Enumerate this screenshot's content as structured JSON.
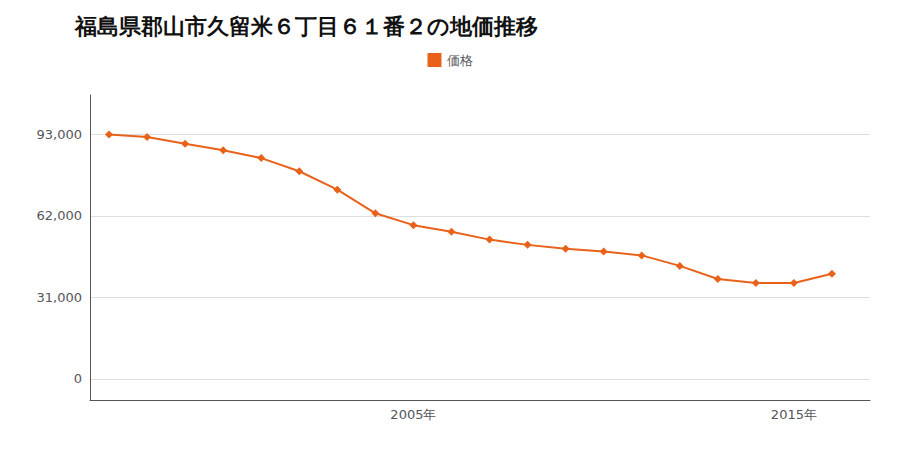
{
  "chart_data": {
    "type": "line",
    "title": "福島県郡山市久留米６丁目６１番２の地価推移",
    "x": [
      1997,
      1998,
      1999,
      2000,
      2001,
      2002,
      2003,
      2004,
      2005,
      2006,
      2007,
      2008,
      2009,
      2010,
      2011,
      2012,
      2013,
      2014,
      2015,
      2016
    ],
    "series": [
      {
        "name": "価格",
        "color": "#e8621a",
        "marker": "diamond",
        "values": [
          93000,
          92000,
          89500,
          87000,
          84000,
          79000,
          72000,
          63000,
          58500,
          56000,
          53000,
          51000,
          49500,
          48500,
          47000,
          43000,
          38000,
          36500,
          36500,
          40000
        ]
      }
    ],
    "xlim": [
      1996.5,
      2017
    ],
    "xticks": [
      {
        "value": 2005,
        "label": "2005年"
      },
      {
        "value": 2015,
        "label": "2015年"
      }
    ],
    "ylim": [
      -8000,
      108000
    ],
    "yticks": [
      0,
      {
        "value": 31000,
        "label": "31,000"
      },
      {
        "value": 62000,
        "label": "62,000"
      },
      {
        "value": 93000,
        "label": "93,000"
      }
    ],
    "grid": true,
    "legend": "top"
  }
}
